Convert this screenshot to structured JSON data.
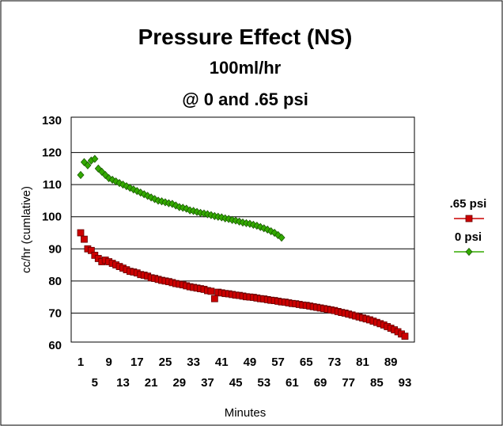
{
  "chart_data": {
    "type": "scatter",
    "title": "Pressure Effect (NS)",
    "subtitle": "100ml/hr",
    "subtitle2": "@ 0 and .65 psi",
    "xlabel": "Minutes",
    "ylabel": "cc/hr (cumlative)",
    "ylim": [
      60,
      130
    ],
    "y_ticks": [
      60,
      70,
      80,
      90,
      100,
      110,
      120,
      130
    ],
    "xlim": [
      0,
      95
    ],
    "x_ticks_upper": [
      1,
      9,
      17,
      25,
      33,
      41,
      49,
      57,
      65,
      73,
      81,
      89
    ],
    "x_ticks_lower": [
      5,
      13,
      21,
      29,
      37,
      45,
      53,
      61,
      69,
      77,
      85,
      93
    ],
    "grid": "horizontal",
    "legend_position": "right",
    "series": [
      {
        "name": ".65 psi",
        "color": "#cc0000",
        "marker": "square",
        "x": [
          1,
          2,
          3,
          4,
          5,
          6,
          7,
          8,
          9,
          10,
          11,
          12,
          13,
          14,
          15,
          16,
          17,
          18,
          19,
          20,
          21,
          22,
          23,
          24,
          25,
          26,
          27,
          28,
          29,
          30,
          31,
          32,
          33,
          34,
          35,
          36,
          37,
          38,
          39,
          40,
          41,
          42,
          43,
          44,
          45,
          46,
          47,
          48,
          49,
          50,
          51,
          52,
          53,
          54,
          55,
          56,
          57,
          58,
          59,
          60,
          61,
          62,
          63,
          64,
          65,
          66,
          67,
          68,
          69,
          70,
          71,
          72,
          73,
          74,
          75,
          76,
          77,
          78,
          79,
          80,
          81,
          82,
          83,
          84,
          85,
          86,
          87,
          88,
          89,
          90,
          91,
          92,
          93
        ],
        "y": [
          95,
          93,
          90,
          89.5,
          88,
          87,
          86,
          86.5,
          86,
          85.5,
          85,
          84.5,
          84,
          83.5,
          83,
          82.8,
          82.5,
          82,
          81.8,
          81.5,
          81,
          80.8,
          80.5,
          80.2,
          80,
          79.8,
          79.5,
          79.2,
          79,
          78.8,
          78.5,
          78.2,
          78,
          77.8,
          77.6,
          77.4,
          77,
          76.8,
          74.5,
          76.5,
          76.3,
          76.1,
          76,
          75.8,
          75.6,
          75.5,
          75.3,
          75.1,
          75,
          74.9,
          74.7,
          74.5,
          74.4,
          74.2,
          74,
          73.9,
          73.7,
          73.5,
          73.4,
          73.2,
          73,
          72.9,
          72.7,
          72.5,
          72.4,
          72.2,
          72,
          71.8,
          71.6,
          71.4,
          71.2,
          71,
          70.8,
          70.5,
          70.2,
          70,
          69.7,
          69.4,
          69.1,
          68.8,
          68.5,
          68.2,
          67.9,
          67.5,
          67.1,
          66.7,
          66.3,
          65.8,
          65.3,
          64.8,
          64.2,
          63.5,
          62.8
        ]
      },
      {
        "name": "0 psi",
        "color": "#33aa00",
        "marker": "diamond",
        "x": [
          1,
          2,
          3,
          4,
          5,
          6,
          7,
          8,
          9,
          10,
          11,
          12,
          13,
          14,
          15,
          16,
          17,
          18,
          19,
          20,
          21,
          22,
          23,
          24,
          25,
          26,
          27,
          28,
          29,
          30,
          31,
          32,
          33,
          34,
          35,
          36,
          37,
          38,
          39,
          40,
          41,
          42,
          43,
          44,
          45,
          46,
          47,
          48,
          49,
          50,
          51,
          52,
          53,
          54,
          55,
          56,
          57,
          58
        ],
        "y": [
          113,
          117,
          116,
          117.5,
          118,
          115,
          114,
          113,
          112,
          111.5,
          111,
          110.5,
          110,
          109.5,
          109,
          108.5,
          108,
          107.5,
          107,
          106.5,
          106,
          105.5,
          105,
          104.8,
          104.5,
          104.2,
          104,
          103.5,
          103,
          102.8,
          102.5,
          102,
          101.8,
          101.5,
          101.2,
          101,
          100.8,
          100.5,
          100.2,
          100,
          99.8,
          99.5,
          99.3,
          99,
          98.8,
          98.5,
          98.2,
          98,
          97.8,
          97.5,
          97.2,
          96.8,
          96.4,
          96,
          95.5,
          95,
          94.3,
          93.5
        ]
      }
    ]
  }
}
